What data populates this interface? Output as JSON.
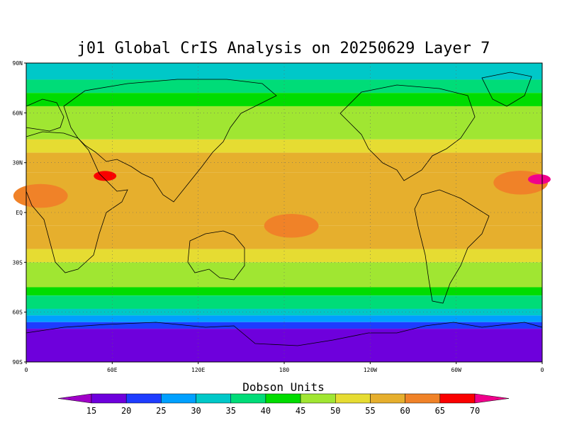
{
  "title": "j01 Global CrIS Analysis on 20250629 Layer 7",
  "colorbar": {
    "label": "Dobson Units",
    "levels": [
      15,
      20,
      25,
      30,
      35,
      40,
      45,
      50,
      55,
      60,
      65,
      70
    ],
    "colors": [
      "#a000c8",
      "#6e00dc",
      "#1e3cff",
      "#00a0ff",
      "#00c8c8",
      "#00dc78",
      "#00dc00",
      "#a0e632",
      "#e6dc32",
      "#e6af2d",
      "#f08228",
      "#fa0000",
      "#f0008c"
    ]
  },
  "axes": {
    "lat_labels": [
      "90N",
      "60N",
      "30N",
      "EQ",
      "30S",
      "60S",
      "90S"
    ],
    "lon_labels": [
      "0",
      "60E",
      "120E",
      "180",
      "120W",
      "60W",
      "0"
    ]
  },
  "chart_data": {
    "type": "heatmap",
    "title": "j01 Global CrIS Analysis on 20250629 Layer 7",
    "colorbar_label": "Dobson Units",
    "x_range_deg_east": [
      0,
      360
    ],
    "y_range_deg_north": [
      -90,
      90
    ],
    "grid": true,
    "zonal_bands": [
      {
        "lat_from": 90,
        "lat_to": 80,
        "value": 30
      },
      {
        "lat_from": 80,
        "lat_to": 72,
        "value": 35
      },
      {
        "lat_from": 72,
        "lat_to": 64,
        "value": 40
      },
      {
        "lat_from": 64,
        "lat_to": 44,
        "value": 45
      },
      {
        "lat_from": 44,
        "lat_to": 36,
        "value": 50
      },
      {
        "lat_from": 36,
        "lat_to": 24,
        "value": 55
      },
      {
        "lat_from": 24,
        "lat_to": -8,
        "value": 55
      },
      {
        "lat_from": -8,
        "lat_to": -22,
        "value": 55
      },
      {
        "lat_from": -22,
        "lat_to": -30,
        "value": 50
      },
      {
        "lat_from": -30,
        "lat_to": -45,
        "value": 45
      },
      {
        "lat_from": -45,
        "lat_to": -50,
        "value": 40
      },
      {
        "lat_from": -50,
        "lat_to": -58,
        "value": 35
      },
      {
        "lat_from": -58,
        "lat_to": -62,
        "value": 30
      },
      {
        "lat_from": -62,
        "lat_to": -66,
        "value": 25
      },
      {
        "lat_from": -66,
        "lat_to": -70,
        "value": 20
      },
      {
        "lat_from": -70,
        "lat_to": -90,
        "value": 15
      }
    ],
    "features": [
      {
        "lon": 55,
        "lat": 22,
        "value": 65
      },
      {
        "lon": 10,
        "lat": 10,
        "value": 60
      },
      {
        "lon": 345,
        "lat": 18,
        "value": 60
      },
      {
        "lon": 358,
        "lat": 20,
        "value": 70
      },
      {
        "lon": 185,
        "lat": -8,
        "value": 60
      },
      {
        "lon": 125,
        "lat": -78,
        "value": 15
      }
    ]
  }
}
